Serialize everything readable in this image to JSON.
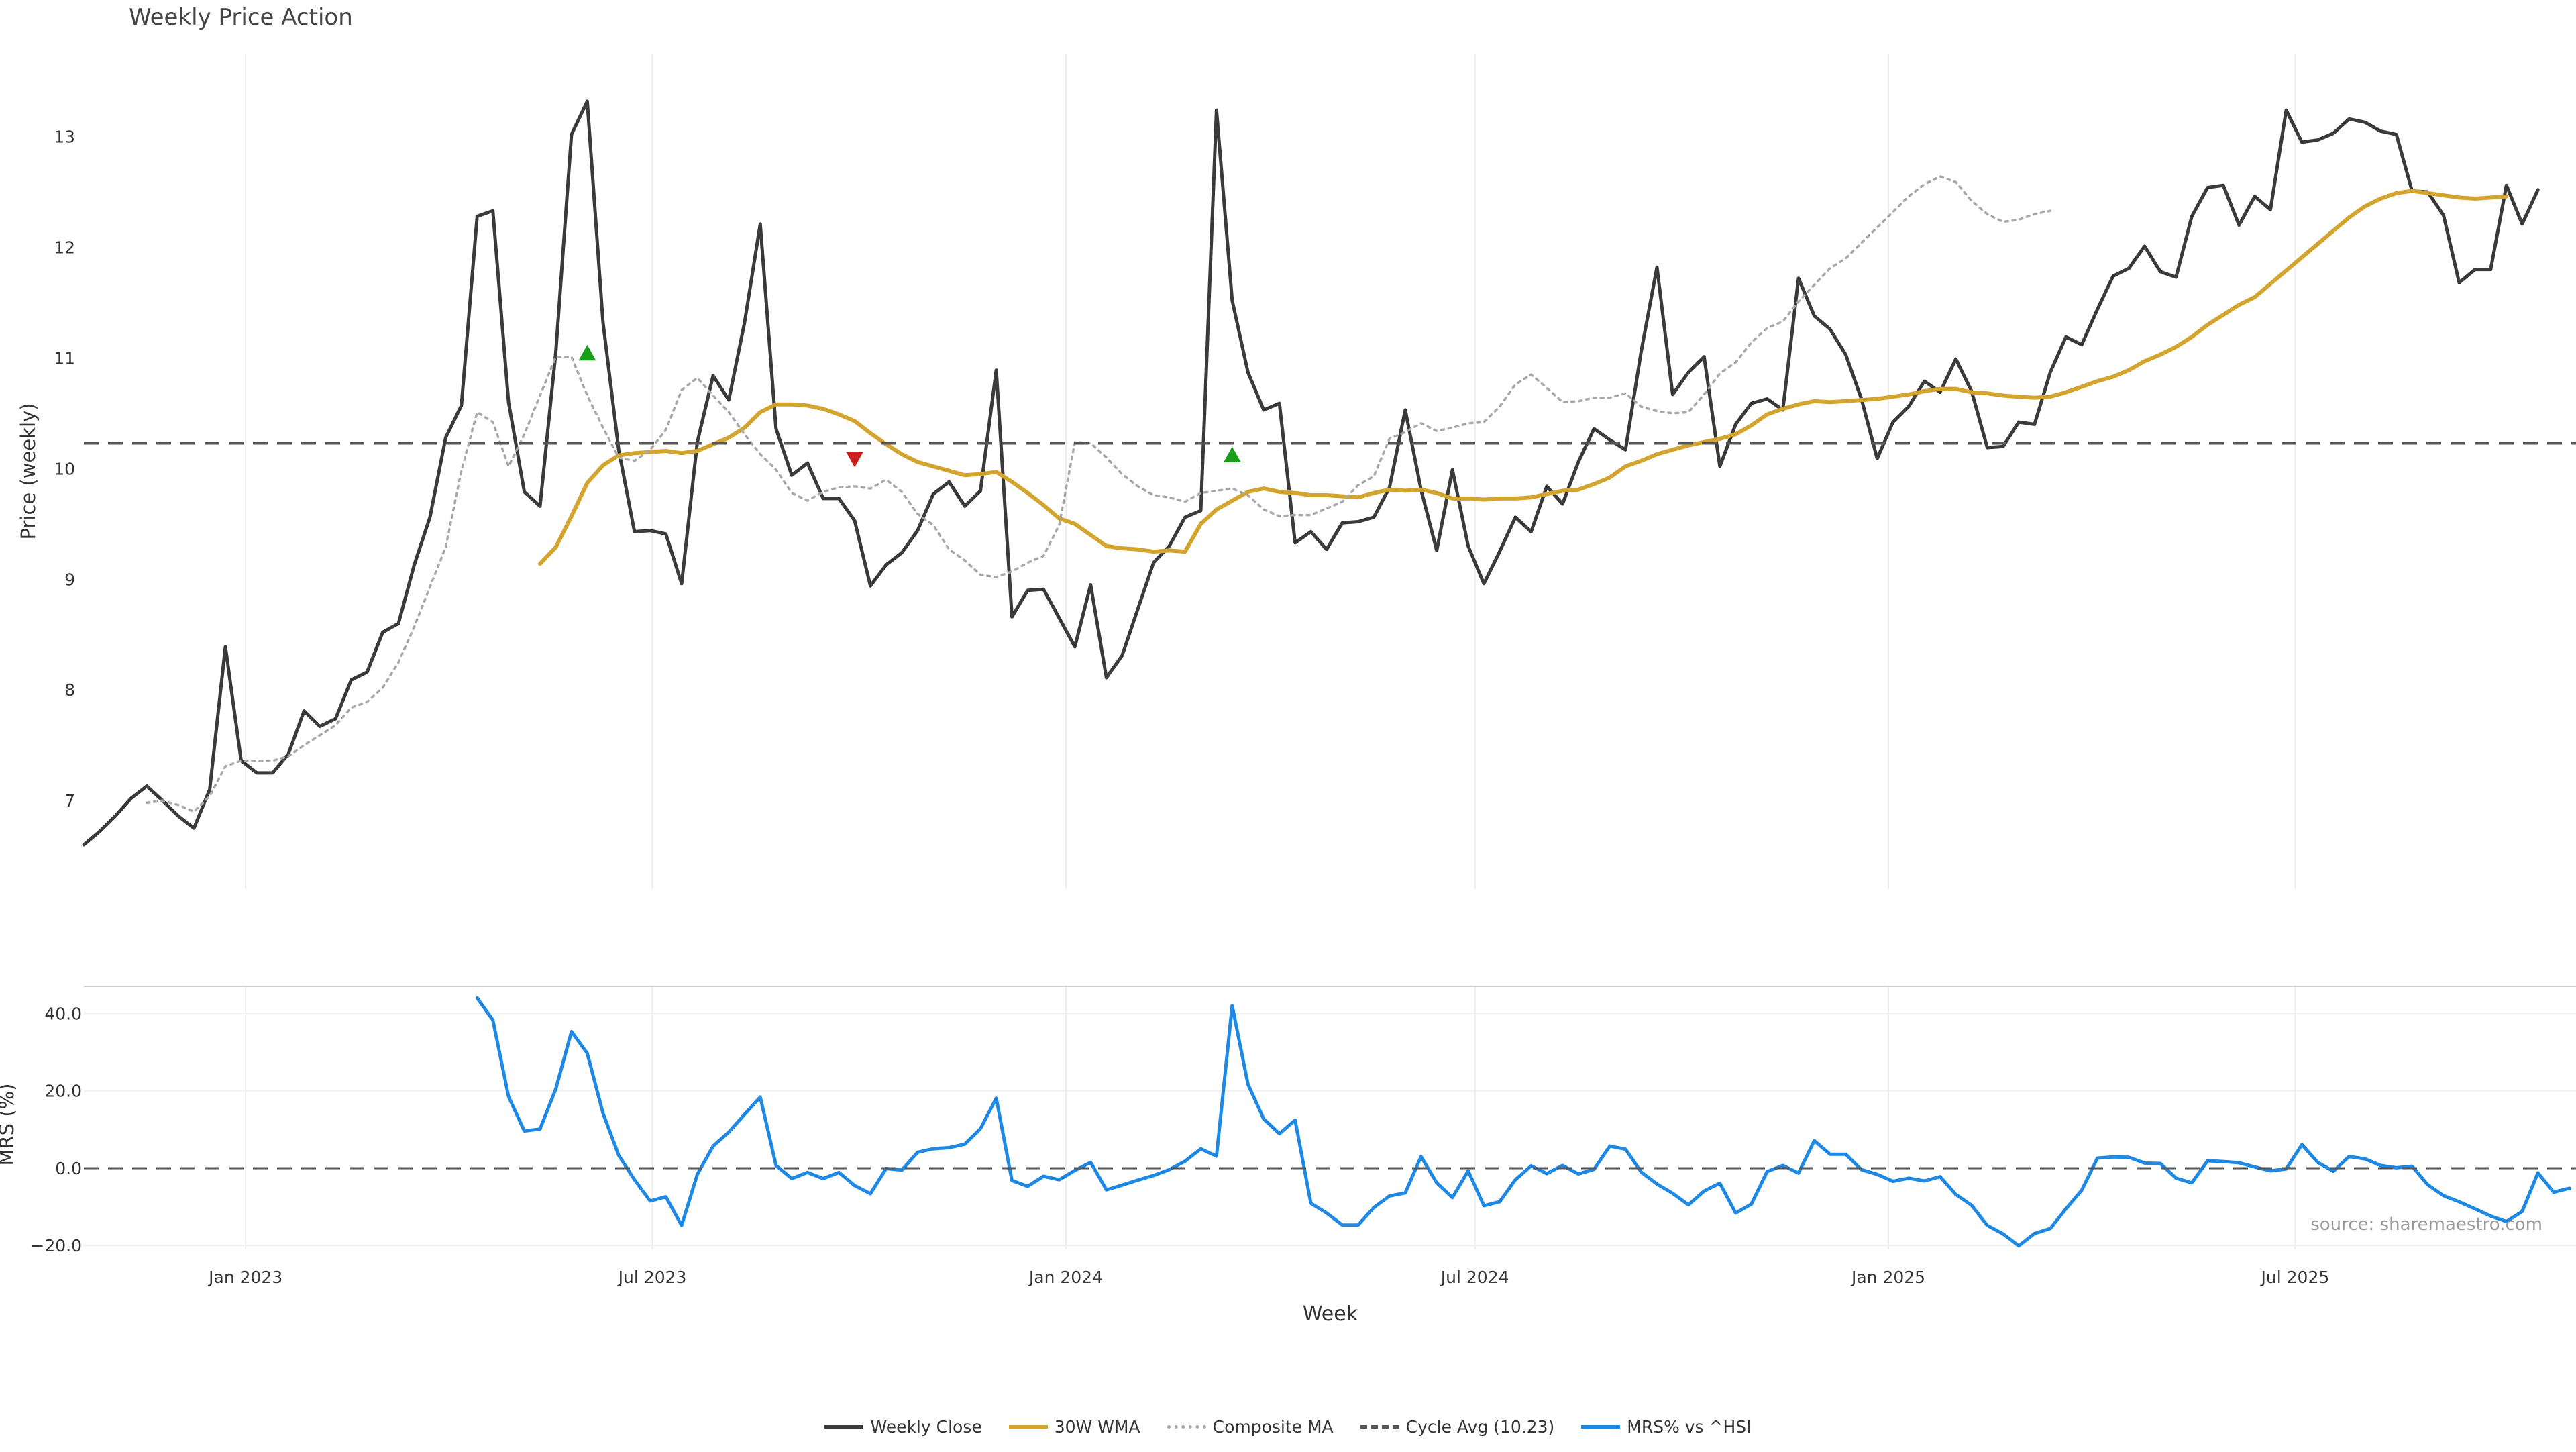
{
  "chart_data": [
    {
      "type": "line",
      "title": "Weekly Price Action",
      "xlabel": "Week",
      "ylabel": "Price (weekly)",
      "ylim": [
        6.2,
        13.75
      ],
      "yticks": [
        7,
        8,
        9,
        10,
        11,
        12,
        13
      ],
      "x_start": "2022-10-21",
      "x_end": "2025-11-21",
      "xticks": [
        {
          "label": "Jan 2023",
          "date": "2023-01-01"
        },
        {
          "label": "Jul 2023",
          "date": "2023-07-01"
        },
        {
          "label": "Jan 2024",
          "date": "2024-01-01"
        },
        {
          "label": "Jul 2024",
          "date": "2024-07-01"
        },
        {
          "label": "Jan 2025",
          "date": "2025-01-01"
        },
        {
          "label": "Jul 2025",
          "date": "2025-07-01"
        }
      ],
      "series": [
        {
          "name": "Weekly Close",
          "color": "#3a3a3a",
          "values": [
            6.6,
            6.72,
            6.86,
            7.02,
            7.13,
            7.0,
            6.86,
            6.75,
            7.1,
            8.39,
            7.36,
            7.25,
            7.25,
            7.42,
            7.81,
            7.67,
            7.74,
            8.09,
            8.16,
            8.52,
            8.6,
            9.13,
            9.56,
            10.28,
            10.57,
            12.28,
            12.33,
            10.6,
            9.79,
            9.66,
            11.05,
            13.02,
            13.32,
            11.32,
            10.17,
            9.43,
            9.44,
            9.41,
            8.96,
            10.24,
            10.84,
            10.62,
            11.32,
            12.21,
            10.36,
            9.94,
            10.05,
            9.73,
            9.73,
            9.53,
            8.94,
            9.13,
            9.24,
            9.44,
            9.77,
            9.88,
            9.66,
            9.8,
            10.89,
            8.66,
            8.9,
            8.91,
            8.65,
            8.39,
            8.95,
            8.11,
            8.31,
            8.73,
            9.15,
            9.3,
            9.56,
            9.62,
            13.24,
            11.52,
            10.87,
            10.53,
            10.59,
            9.33,
            9.43,
            9.27,
            9.51,
            9.52,
            9.56,
            9.83,
            10.53,
            9.81,
            9.26,
            9.99,
            9.3,
            8.96,
            9.25,
            9.56,
            9.43,
            9.84,
            9.68,
            10.06,
            10.36,
            10.26,
            10.17,
            11.06,
            11.82,
            10.67,
            10.87,
            11.01,
            10.02,
            10.4,
            10.59,
            10.63,
            10.53,
            11.72,
            11.38,
            11.26,
            11.03,
            10.63,
            10.09,
            10.42,
            10.56,
            10.79,
            10.69,
            10.99,
            10.7,
            10.19,
            10.2,
            10.42,
            10.4,
            10.87,
            11.19,
            11.12,
            11.44,
            11.74,
            11.81,
            12.01,
            11.78,
            11.73,
            12.28,
            12.54,
            12.56,
            12.2,
            12.46,
            12.34,
            13.24,
            12.95,
            12.97,
            13.03,
            13.16,
            13.13,
            13.05,
            13.02,
            12.51,
            12.5,
            12.29,
            11.68,
            11.8,
            11.8,
            12.56,
            12.21,
            12.52
          ]
        },
        {
          "name": "30W WMA",
          "color": "#d4a52e",
          "start_index": 29,
          "values": [
            9.14,
            9.29,
            9.57,
            9.87,
            10.03,
            10.12,
            10.14,
            10.15,
            10.16,
            10.14,
            10.16,
            10.22,
            10.28,
            10.37,
            10.51,
            10.58,
            10.58,
            10.57,
            10.54,
            10.49,
            10.43,
            10.32,
            10.22,
            10.13,
            10.06,
            10.02,
            9.98,
            9.94,
            9.95,
            9.97,
            9.88,
            9.78,
            9.67,
            9.55,
            9.5,
            9.4,
            9.3,
            9.28,
            9.27,
            9.25,
            9.26,
            9.25,
            9.5,
            9.63,
            9.71,
            9.79,
            9.82,
            9.79,
            9.78,
            9.76,
            9.76,
            9.75,
            9.74,
            9.78,
            9.81,
            9.8,
            9.81,
            9.78,
            9.73,
            9.73,
            9.72,
            9.73,
            9.73,
            9.74,
            9.77,
            9.8,
            9.81,
            9.86,
            9.92,
            10.02,
            10.07,
            10.13,
            10.17,
            10.21,
            10.24,
            10.27,
            10.31,
            10.39,
            10.49,
            10.54,
            10.58,
            10.61,
            10.6,
            10.61,
            10.62,
            10.63,
            10.65,
            10.67,
            10.7,
            10.72,
            10.72,
            10.69,
            10.68,
            10.66,
            10.65,
            10.64,
            10.65,
            10.69,
            10.74,
            10.79,
            10.83,
            10.89,
            10.97,
            11.03,
            11.1,
            11.19,
            11.3,
            11.39,
            11.48,
            11.55,
            11.67,
            11.79,
            11.91,
            12.03,
            12.15,
            12.27,
            12.37,
            12.44,
            12.49,
            12.51,
            12.49,
            12.47,
            12.45,
            12.44,
            12.45,
            12.46
          ]
        },
        {
          "name": "Composite MA",
          "color": "#a8a8a8",
          "start_index": 4,
          "values": [
            6.98,
            7.0,
            6.96,
            6.9,
            7.04,
            7.31,
            7.36,
            7.36,
            7.36,
            7.4,
            7.5,
            7.59,
            7.68,
            7.84,
            7.89,
            8.02,
            8.25,
            8.57,
            8.93,
            9.29,
            9.98,
            10.51,
            10.42,
            10.02,
            10.31,
            10.66,
            11.01,
            11.01,
            10.66,
            10.37,
            10.1,
            10.07,
            10.17,
            10.35,
            10.71,
            10.82,
            10.66,
            10.51,
            10.31,
            10.13,
            9.99,
            9.78,
            9.71,
            9.79,
            9.83,
            9.84,
            9.82,
            9.9,
            9.79,
            9.59,
            9.49,
            9.27,
            9.17,
            9.04,
            9.02,
            9.07,
            9.15,
            9.21,
            9.49,
            10.24,
            10.23,
            10.1,
            9.95,
            9.84,
            9.76,
            9.74,
            9.7,
            9.78,
            9.8,
            9.82,
            9.76,
            9.63,
            9.57,
            9.58,
            9.58,
            9.64,
            9.7,
            9.85,
            9.93,
            10.27,
            10.33,
            10.41,
            10.34,
            10.37,
            10.41,
            10.42,
            10.56,
            10.76,
            10.85,
            10.73,
            10.6,
            10.61,
            10.64,
            10.64,
            10.68,
            10.56,
            10.52,
            10.5,
            10.51,
            10.67,
            10.86,
            10.96,
            11.14,
            11.27,
            11.33,
            11.51,
            11.66,
            11.81,
            11.9,
            12.04,
            12.18,
            12.32,
            12.46,
            12.57,
            12.64,
            12.59,
            12.42,
            12.3,
            12.23,
            12.25,
            12.3,
            12.33
          ]
        },
        {
          "name": "Cycle Avg (10.23)",
          "color": "#555555",
          "constant": 10.23
        }
      ],
      "markers": [
        {
          "label": "buy",
          "shape": "triangle-up",
          "color": "#1a9e1a",
          "index": 32,
          "value": 11.04
        },
        {
          "label": "sell",
          "shape": "triangle-down",
          "color": "#cc1f1f",
          "index": 49,
          "value": 10.09
        },
        {
          "label": "buy",
          "shape": "triangle-up",
          "color": "#1a9e1a",
          "index": 73,
          "value": 10.12
        }
      ]
    },
    {
      "type": "line",
      "ylabel": "MRS (%)",
      "ylim": [
        -21,
        47
      ],
      "yticks": [
        {
          "value": -20,
          "label": "−20.0"
        },
        {
          "value": 0,
          "label": "0.0"
        },
        {
          "value": 20,
          "label": "20.0"
        },
        {
          "value": 40,
          "label": "40.0"
        }
      ],
      "series": [
        {
          "name": "MRS% vs ^HSI",
          "color": "#1e88e5",
          "start_index": 25,
          "values": [
            44.0,
            38.3,
            18.5,
            9.6,
            10.1,
            20.5,
            35.3,
            29.7,
            14.2,
            3.3,
            -3.0,
            -8.5,
            -7.4,
            -14.8,
            -1.6,
            5.7,
            9.3,
            13.9,
            18.4,
            0.7,
            -2.7,
            -1.1,
            -2.7,
            -1.1,
            -4.5,
            -6.6,
            -0.1,
            -0.5,
            4.1,
            5.0,
            5.3,
            6.2,
            10.2,
            18.1,
            -3.2,
            -4.7,
            -2.1,
            -3.0,
            -0.6,
            1.5,
            -5.6,
            -4.4,
            -3.1,
            -1.9,
            -0.4,
            1.8,
            5.0,
            3.1,
            42.0,
            21.7,
            12.7,
            8.9,
            12.4,
            -9.1,
            -11.6,
            -14.7,
            -14.7,
            -10.2,
            -7.2,
            -6.4,
            3.0,
            -3.8,
            -7.6,
            -0.7,
            -9.7,
            -8.7,
            -3.0,
            0.6,
            -1.4,
            0.7,
            -1.5,
            -0.3,
            5.7,
            4.9,
            -1.0,
            -4.1,
            -6.5,
            -9.5,
            -5.9,
            -3.9,
            -11.6,
            -9.3,
            -0.9,
            0.7,
            -1.3,
            7.1,
            3.6,
            3.6,
            -0.4,
            -1.6,
            -3.4,
            -2.6,
            -3.3,
            -2.2,
            -6.8,
            -9.6,
            -14.8,
            -17.0,
            -20.1,
            -16.9,
            -15.6,
            -10.5,
            -5.7,
            2.6,
            2.9,
            2.8,
            1.3,
            1.2,
            -2.6,
            -3.8,
            1.9,
            1.7,
            1.4,
            0.3,
            -0.7,
            -0.2,
            6.1,
            1.5,
            -0.8,
            3.0,
            2.4,
            0.7,
            0.1,
            0.5,
            -4.3,
            -7.1,
            -8.7,
            -10.5,
            -12.4,
            -13.8,
            -11.2,
            -1.2,
            -6.2,
            -5.2
          ]
        },
        {
          "name": "MRS zero",
          "color": "#555555",
          "constant": 0
        }
      ]
    }
  ],
  "xaxis_label": "Week",
  "source_note": "source: sharemaestro.com",
  "legend": [
    {
      "label": "Weekly Close",
      "color": "#3a3a3a",
      "style": "solid"
    },
    {
      "label": "30W WMA",
      "color": "#d4a52e",
      "style": "solid"
    },
    {
      "label": "Composite MA",
      "color": "#a8a8a8",
      "style": "dotted"
    },
    {
      "label": "Cycle Avg (10.23)",
      "color": "#555555",
      "style": "dashed"
    },
    {
      "label": "MRS% vs ^HSI",
      "color": "#1e88e5",
      "style": "solid"
    }
  ]
}
